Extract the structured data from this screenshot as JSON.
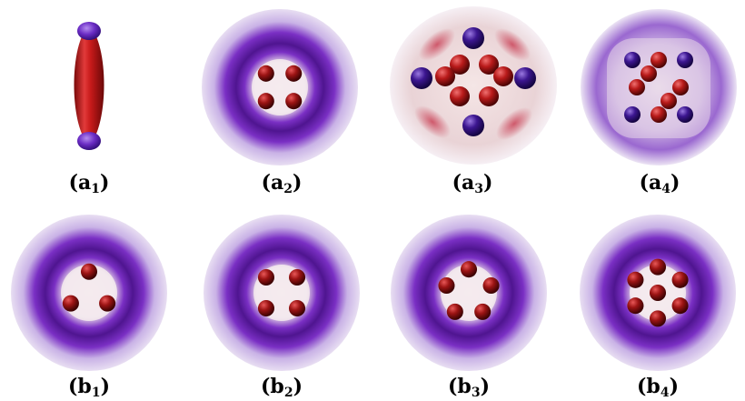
{
  "figure": {
    "panels": [
      {
        "id": "a1",
        "letter": "a",
        "index": "1",
        "kind": "elongated-cloud"
      },
      {
        "id": "a2",
        "letter": "a",
        "index": "2",
        "kind": "ring-core"
      },
      {
        "id": "a3",
        "letter": "a",
        "index": "3",
        "kind": "lattice-dense"
      },
      {
        "id": "a4",
        "letter": "a",
        "index": "4",
        "kind": "lattice-sparse"
      },
      {
        "id": "b1",
        "letter": "b",
        "index": "1",
        "kind": "ring-core"
      },
      {
        "id": "b2",
        "letter": "b",
        "index": "2",
        "kind": "ring-core"
      },
      {
        "id": "b3",
        "letter": "b",
        "index": "3",
        "kind": "ring-core"
      },
      {
        "id": "b4",
        "letter": "b",
        "index": "4",
        "kind": "ring-core"
      }
    ],
    "colors": {
      "halo": "#e8def2",
      "ring": "#7a2fc4",
      "ring_dark": "#4f1590",
      "core_glow": "#f3e2e6",
      "vortex_red": "#9c1414",
      "vortex_highlight": "#e85858",
      "vortex_blue": "#3a1380",
      "cloud_red": "#c81a1a"
    }
  }
}
